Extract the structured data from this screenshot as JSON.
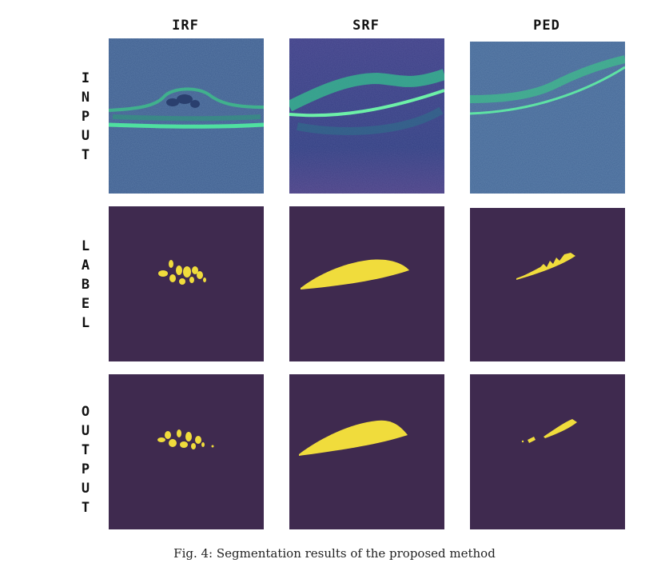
{
  "figure": {
    "columns": [
      {
        "id": "irf",
        "label": "IRF"
      },
      {
        "id": "srf",
        "label": "SRF"
      },
      {
        "id": "ped",
        "label": "PED"
      }
    ],
    "rows": [
      {
        "id": "input",
        "label": "INPUT"
      },
      {
        "id": "label",
        "label": "LABEL"
      },
      {
        "id": "output",
        "label": "OUTPUT"
      }
    ],
    "caption": "Fig. 4: Segmentation results of the proposed method"
  },
  "colors": {
    "mask_background": "#3f2a4f",
    "mask_foreground": "#f0dc3c",
    "oct_background": "#3b5a8c",
    "oct_retina": "#3dc28a"
  }
}
